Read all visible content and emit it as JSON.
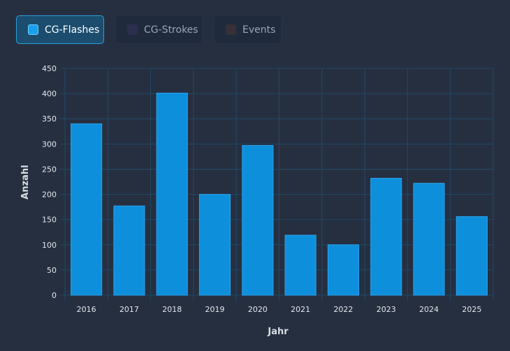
{
  "toggles": [
    {
      "label": "CG-Flashes",
      "active": true,
      "color": "#1aa0ec"
    },
    {
      "label": "CG-Strokes",
      "active": false,
      "color": "#2b2e4f"
    },
    {
      "label": "Events",
      "active": false,
      "color": "#382f39"
    }
  ],
  "colors": {
    "background": "#262f40",
    "grid": "#1f4a66",
    "bar_fill": "#0e8fdc",
    "bar_border": "#2aa3ee"
  },
  "chart_data": {
    "type": "bar",
    "categories": [
      "2016",
      "2017",
      "2018",
      "2019",
      "2020",
      "2021",
      "2022",
      "2023",
      "2024",
      "2025"
    ],
    "series": [
      {
        "name": "CG-Flashes",
        "values": [
          340,
          177,
          401,
          200,
          297,
          119,
          100,
          232,
          222,
          156
        ]
      }
    ],
    "xlabel": "Jahr",
    "ylabel": "Anzahl",
    "ylim": [
      0,
      450
    ],
    "yticks": [
      0,
      50,
      100,
      150,
      200,
      250,
      300,
      350,
      400,
      450
    ],
    "grid": true,
    "legend": "top-left"
  }
}
